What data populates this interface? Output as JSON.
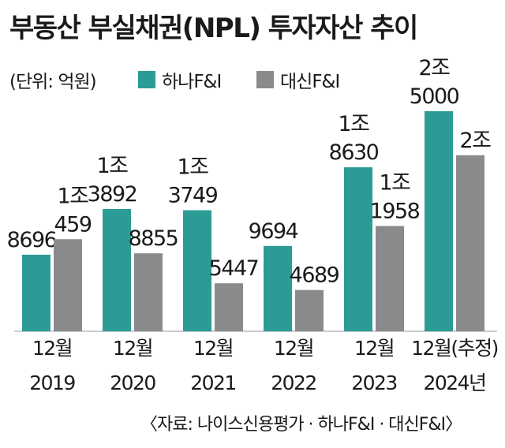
{
  "title": "부동산 부실채권(NPL) 투자자산 추이",
  "unit": "(단위: 억원)",
  "legend": [
    {
      "name": "하나F&I",
      "color": "#2b9b96"
    },
    {
      "name": "대신F&I",
      "color": "#8a8a8d"
    }
  ],
  "source": "〈자료: 나이스신용평가 · 하나F&I · 대신F&I〉",
  "chart_data": {
    "type": "bar",
    "categories": [
      [
        "12월",
        "2019"
      ],
      [
        "12월",
        "2020"
      ],
      [
        "12월",
        "2021"
      ],
      [
        "12월",
        "2022"
      ],
      [
        "12월",
        "2023"
      ],
      [
        "12월(추정)",
        "2024년"
      ]
    ],
    "series": [
      {
        "name": "하나F&I",
        "values": [
          8696,
          13892,
          13749,
          9694,
          18630,
          25000
        ],
        "labels": [
          [
            "8696"
          ],
          [
            "1조",
            "3892"
          ],
          [
            "1조",
            "3749"
          ],
          [
            "9694"
          ],
          [
            "1조",
            "8630"
          ],
          [
            "2조",
            "5000"
          ]
        ]
      },
      {
        "name": "대신F&I",
        "values": [
          10459,
          8855,
          5447,
          4689,
          11958,
          20000
        ],
        "labels": [
          [
            "1조",
            "459"
          ],
          [
            "8855"
          ],
          [
            "5447"
          ],
          [
            "4689"
          ],
          [
            "1조",
            "1958"
          ],
          [
            "2조"
          ]
        ]
      }
    ],
    "ylim": [
      0,
      25000
    ],
    "legend_position": "top-left"
  }
}
